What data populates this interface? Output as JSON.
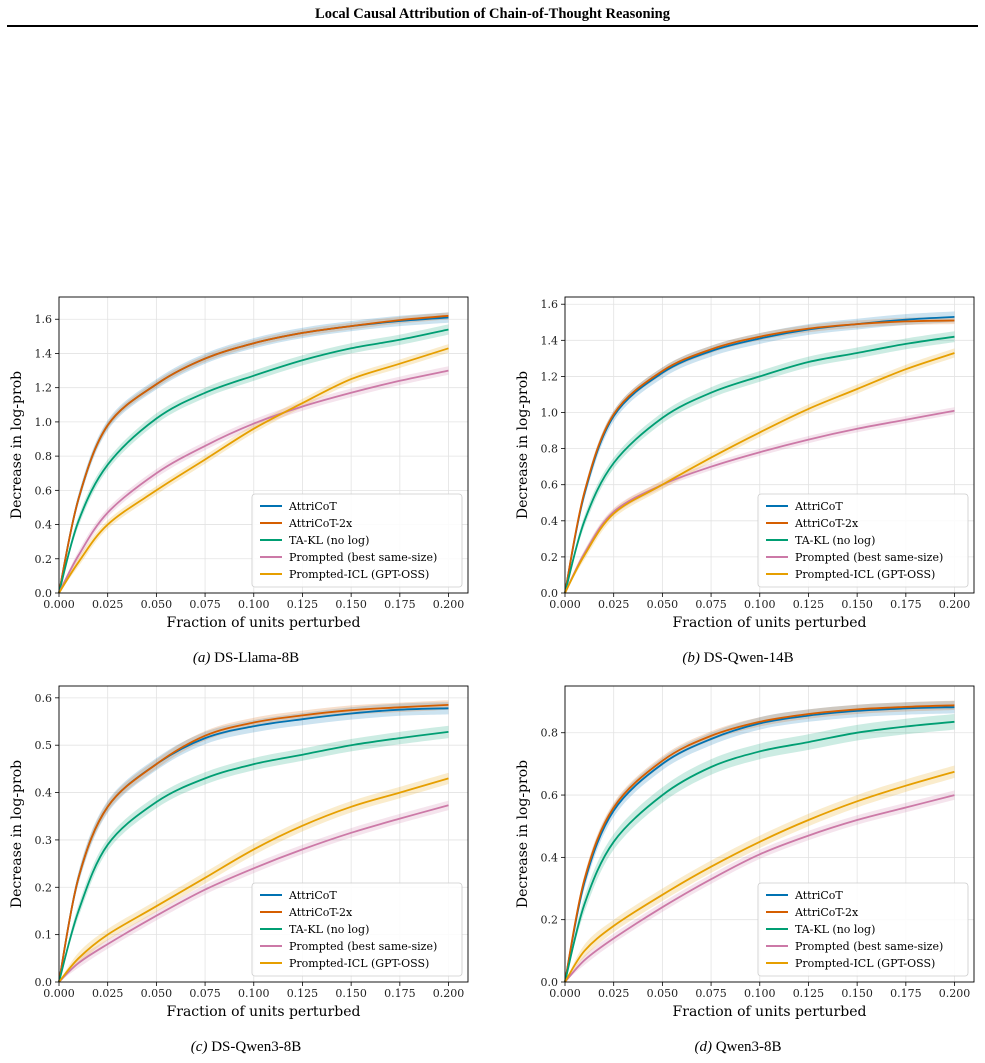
{
  "header": {
    "title": "Local Causal Attribution of Chain-of-Thought Reasoning"
  },
  "colors": {
    "AttriCoT": "#0072b2",
    "AttriCoT-2x": "#d55e00",
    "TA-KL (no log)": "#009e73",
    "Prompted (best same-size)": "#cc79a7",
    "Prompted-ICL (GPT-OSS)": "#e69f00"
  },
  "chart_data": [
    {
      "type": "line",
      "caption_label": "(a)",
      "caption_text": "DS-Llama-8B",
      "xlabel": "Fraction of units perturbed",
      "ylabel": "Decrease in log-prob",
      "xlim": [
        0,
        0.21
      ],
      "ylim": [
        0,
        1.73
      ],
      "xticks": [
        0,
        0.025,
        0.05,
        0.075,
        0.1,
        0.125,
        0.15,
        0.175,
        0.2
      ],
      "xtick_labels": [
        "0.000",
        "0.025",
        "0.050",
        "0.075",
        "0.100",
        "0.125",
        "0.150",
        "0.175",
        "0.200"
      ],
      "yticks": [
        0,
        0.2,
        0.4,
        0.6,
        0.8,
        1.0,
        1.2,
        1.4,
        1.6
      ],
      "ytick_labels": [
        "0.0",
        "0.2",
        "0.4",
        "0.6",
        "0.8",
        "1.0",
        "1.2",
        "1.4",
        "1.6"
      ],
      "grid": true,
      "legend": "lower-right",
      "x": [
        0,
        0.01,
        0.025,
        0.05,
        0.075,
        0.1,
        0.125,
        0.15,
        0.175,
        0.2
      ],
      "series": [
        {
          "name": "AttriCoT",
          "values": [
            0,
            0.55,
            0.98,
            1.22,
            1.37,
            1.46,
            1.52,
            1.56,
            1.59,
            1.61
          ],
          "band": 0.03
        },
        {
          "name": "AttriCoT-2x",
          "values": [
            0,
            0.55,
            0.98,
            1.22,
            1.37,
            1.46,
            1.52,
            1.56,
            1.595,
            1.62
          ],
          "band": 0.02
        },
        {
          "name": "TA-KL (no log)",
          "values": [
            0,
            0.42,
            0.75,
            1.02,
            1.17,
            1.27,
            1.36,
            1.43,
            1.48,
            1.54
          ],
          "band": 0.03
        },
        {
          "name": "Prompted (best same-size)",
          "values": [
            0,
            0.22,
            0.47,
            0.7,
            0.86,
            0.99,
            1.09,
            1.17,
            1.24,
            1.3
          ],
          "band": 0.025
        },
        {
          "name": "Prompted-ICL (GPT-OSS)",
          "values": [
            0,
            0.18,
            0.4,
            0.6,
            0.78,
            0.96,
            1.11,
            1.25,
            1.34,
            1.43
          ],
          "band": 0.025
        }
      ]
    },
    {
      "type": "line",
      "caption_label": "(b)",
      "caption_text": "DS-Qwen-14B",
      "xlabel": "Fraction of units perturbed",
      "ylabel": "Decrease in log-prob",
      "xlim": [
        0,
        0.21
      ],
      "ylim": [
        0,
        1.64
      ],
      "xticks": [
        0,
        0.025,
        0.05,
        0.075,
        0.1,
        0.125,
        0.15,
        0.175,
        0.2
      ],
      "xtick_labels": [
        "0.000",
        "0.025",
        "0.050",
        "0.075",
        "0.100",
        "0.125",
        "0.150",
        "0.175",
        "0.200"
      ],
      "yticks": [
        0,
        0.2,
        0.4,
        0.6,
        0.8,
        1.0,
        1.2,
        1.4,
        1.6
      ],
      "ytick_labels": [
        "0.0",
        "0.2",
        "0.4",
        "0.6",
        "0.8",
        "1.0",
        "1.2",
        "1.4",
        "1.6"
      ],
      "grid": true,
      "legend": "lower-right",
      "x": [
        0,
        0.01,
        0.025,
        0.05,
        0.075,
        0.1,
        0.125,
        0.15,
        0.175,
        0.2
      ],
      "series": [
        {
          "name": "AttriCoT",
          "values": [
            0,
            0.55,
            0.98,
            1.22,
            1.34,
            1.41,
            1.46,
            1.49,
            1.515,
            1.53
          ],
          "band": 0.03
        },
        {
          "name": "AttriCoT-2x",
          "values": [
            0,
            0.56,
            0.99,
            1.23,
            1.35,
            1.42,
            1.465,
            1.49,
            1.505,
            1.51
          ],
          "band": 0.02
        },
        {
          "name": "TA-KL (no log)",
          "values": [
            0,
            0.4,
            0.72,
            0.97,
            1.11,
            1.2,
            1.28,
            1.33,
            1.38,
            1.42
          ],
          "band": 0.03
        },
        {
          "name": "Prompted (best same-size)",
          "values": [
            0,
            0.22,
            0.45,
            0.6,
            0.7,
            0.78,
            0.85,
            0.91,
            0.96,
            1.01
          ],
          "band": 0.02
        },
        {
          "name": "Prompted-ICL (GPT-OSS)",
          "values": [
            0,
            0.21,
            0.44,
            0.6,
            0.75,
            0.89,
            1.02,
            1.13,
            1.24,
            1.33
          ],
          "band": 0.025
        }
      ]
    },
    {
      "type": "line",
      "caption_label": "(c)",
      "caption_text": "DS-Qwen3-8B",
      "xlabel": "Fraction of units perturbed",
      "ylabel": "Decrease in log-prob",
      "xlim": [
        0,
        0.21
      ],
      "ylim": [
        0,
        0.625
      ],
      "xticks": [
        0,
        0.025,
        0.05,
        0.075,
        0.1,
        0.125,
        0.15,
        0.175,
        0.2
      ],
      "xtick_labels": [
        "0.000",
        "0.025",
        "0.050",
        "0.075",
        "0.100",
        "0.125",
        "0.150",
        "0.175",
        "0.200"
      ],
      "yticks": [
        0,
        0.1,
        0.2,
        0.3,
        0.4,
        0.5,
        0.6
      ],
      "ytick_labels": [
        "0.0",
        "0.1",
        "0.2",
        "0.3",
        "0.4",
        "0.5",
        "0.6"
      ],
      "grid": true,
      "legend": "lower-right",
      "x": [
        0,
        0.01,
        0.025,
        0.05,
        0.075,
        0.1,
        0.125,
        0.15,
        0.175,
        0.2
      ],
      "series": [
        {
          "name": "AttriCoT",
          "values": [
            0,
            0.22,
            0.37,
            0.46,
            0.515,
            0.54,
            0.555,
            0.567,
            0.575,
            0.578
          ],
          "band": 0.013
        },
        {
          "name": "AttriCoT-2x",
          "values": [
            0,
            0.22,
            0.37,
            0.46,
            0.52,
            0.548,
            0.563,
            0.574,
            0.58,
            0.585
          ],
          "band": 0.01
        },
        {
          "name": "TA-KL (no log)",
          "values": [
            0,
            0.15,
            0.29,
            0.38,
            0.43,
            0.46,
            0.48,
            0.5,
            0.515,
            0.528
          ],
          "band": 0.013
        },
        {
          "name": "Prompted (best same-size)",
          "values": [
            0,
            0.04,
            0.08,
            0.14,
            0.195,
            0.24,
            0.28,
            0.315,
            0.345,
            0.373
          ],
          "band": 0.01
        },
        {
          "name": "Prompted-ICL (GPT-OSS)",
          "values": [
            0,
            0.05,
            0.1,
            0.16,
            0.22,
            0.28,
            0.33,
            0.37,
            0.4,
            0.43
          ],
          "band": 0.012
        }
      ]
    },
    {
      "type": "line",
      "caption_label": "(d)",
      "caption_text": "Qwen3-8B",
      "xlabel": "Fraction of units perturbed",
      "ylabel": "Decrease in log-prob",
      "xlim": [
        0,
        0.21
      ],
      "ylim": [
        0,
        0.95
      ],
      "xticks": [
        0,
        0.025,
        0.05,
        0.075,
        0.1,
        0.125,
        0.15,
        0.175,
        0.2
      ],
      "xtick_labels": [
        "0.000",
        "0.025",
        "0.050",
        "0.075",
        "0.100",
        "0.125",
        "0.150",
        "0.175",
        "0.200"
      ],
      "yticks": [
        0,
        0.2,
        0.4,
        0.6,
        0.8
      ],
      "ytick_labels": [
        "0.0",
        "0.2",
        "0.4",
        "0.6",
        "0.8"
      ],
      "grid": true,
      "legend": "lower-right",
      "x": [
        0,
        0.01,
        0.025,
        0.05,
        0.075,
        0.1,
        0.125,
        0.15,
        0.175,
        0.2
      ],
      "series": [
        {
          "name": "AttriCoT",
          "values": [
            0,
            0.32,
            0.55,
            0.7,
            0.78,
            0.83,
            0.855,
            0.87,
            0.878,
            0.882
          ],
          "band": 0.02
        },
        {
          "name": "AttriCoT-2x",
          "values": [
            0,
            0.33,
            0.56,
            0.71,
            0.79,
            0.835,
            0.86,
            0.875,
            0.883,
            0.888
          ],
          "band": 0.015
        },
        {
          "name": "TA-KL (no log)",
          "values": [
            0,
            0.25,
            0.45,
            0.6,
            0.69,
            0.74,
            0.77,
            0.8,
            0.82,
            0.835
          ],
          "band": 0.025
        },
        {
          "name": "Prompted (best same-size)",
          "values": [
            0,
            0.07,
            0.14,
            0.24,
            0.33,
            0.41,
            0.47,
            0.52,
            0.56,
            0.6
          ],
          "band": 0.015
        },
        {
          "name": "Prompted-ICL (GPT-OSS)",
          "values": [
            0,
            0.1,
            0.18,
            0.28,
            0.37,
            0.45,
            0.52,
            0.58,
            0.63,
            0.675
          ],
          "band": 0.02
        }
      ]
    }
  ]
}
